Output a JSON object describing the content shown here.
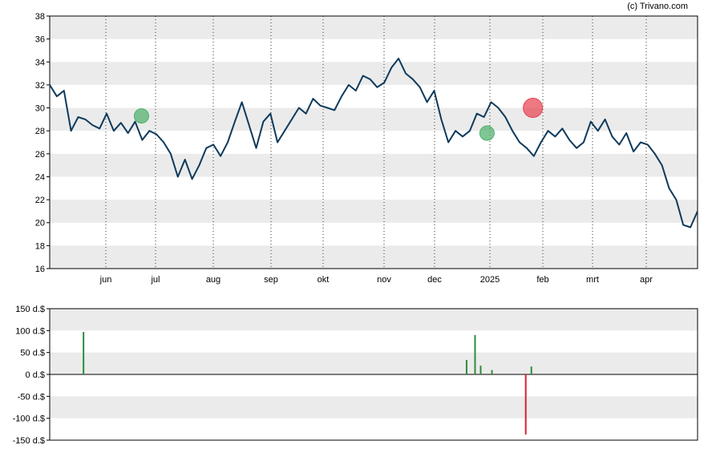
{
  "copyright": "(c) Trivano.com",
  "colors": {
    "price_line": "#0d3a5c",
    "band": "#ebebeb",
    "buy": "#2e8b3e",
    "sell": "#d9202e",
    "buy_marker": "#4caf6a",
    "sell_marker": "#e8404e"
  },
  "chart_data": [
    {
      "type": "line",
      "title": "",
      "xlabel": "",
      "ylabel": "",
      "ylim": [
        16,
        38
      ],
      "yticks": [
        "16",
        "18",
        "20",
        "22",
        "24",
        "26",
        "28",
        "30",
        "32",
        "34",
        "36",
        "38"
      ],
      "xticks": [
        "jun",
        "jul",
        "aug",
        "sep",
        "okt",
        "nov",
        "dec",
        "2025",
        "feb",
        "mrt",
        "apr"
      ],
      "grid": "alternating horizontal bands, dotted vertical lines at month ticks",
      "series": [
        {
          "values": [
            32.0,
            31.0,
            31.5,
            28.0,
            29.2,
            29.0,
            28.5,
            28.2,
            29.5,
            28.0,
            28.7,
            27.8,
            28.8,
            27.2,
            28.0,
            27.7,
            27.0,
            26.0,
            24.0,
            25.5,
            23.8,
            25.0,
            26.5,
            26.8,
            25.8,
            27.0,
            28.8,
            30.5,
            28.5,
            26.5,
            28.8,
            29.5,
            27.0,
            28.0,
            29.0,
            30.0,
            29.5,
            30.8,
            30.2,
            30.0,
            29.8,
            31.0,
            32.0,
            31.5,
            32.8,
            32.5,
            31.8,
            32.2,
            33.5,
            34.3,
            33.0,
            32.5,
            31.8,
            30.5,
            31.5,
            29.0,
            27.0,
            28.0,
            27.5,
            28.0,
            29.5,
            29.2,
            30.5,
            30.0,
            29.2,
            28.0,
            27.0,
            26.5,
            25.8,
            27.0,
            28.0,
            27.5,
            28.2,
            27.2,
            26.5,
            27.0,
            28.8,
            28.0,
            29.0,
            27.5,
            26.8,
            27.8,
            26.2,
            27.0,
            26.8,
            26.0,
            25.0,
            23.0,
            22.0,
            19.8,
            19.6,
            21.0
          ]
        }
      ],
      "markers": [
        {
          "kind": "buy",
          "x": 34,
          "value": 29.3
        },
        {
          "kind": "buy",
          "x": 162,
          "value": 27.8
        },
        {
          "kind": "sell",
          "x": 179,
          "value": 30.0
        }
      ]
    },
    {
      "type": "bar",
      "title": "",
      "xlabel": "",
      "ylabel": "",
      "ylim": [
        -150,
        150
      ],
      "yticks": [
        "150 d.$",
        "100 d.$",
        "50 d.$",
        "0 d.$",
        "-50 d.$",
        "-100 d.$",
        "-150 d.$"
      ],
      "bars": [
        {
          "day": 12,
          "value": 97
        },
        {
          "day": 148,
          "value": 33
        },
        {
          "day": 151,
          "value": 90
        },
        {
          "day": 153,
          "value": 20
        },
        {
          "day": 157,
          "value": 10
        },
        {
          "day": 169,
          "value": -137
        },
        {
          "day": 171,
          "value": 18
        }
      ],
      "day_count": 270
    }
  ]
}
